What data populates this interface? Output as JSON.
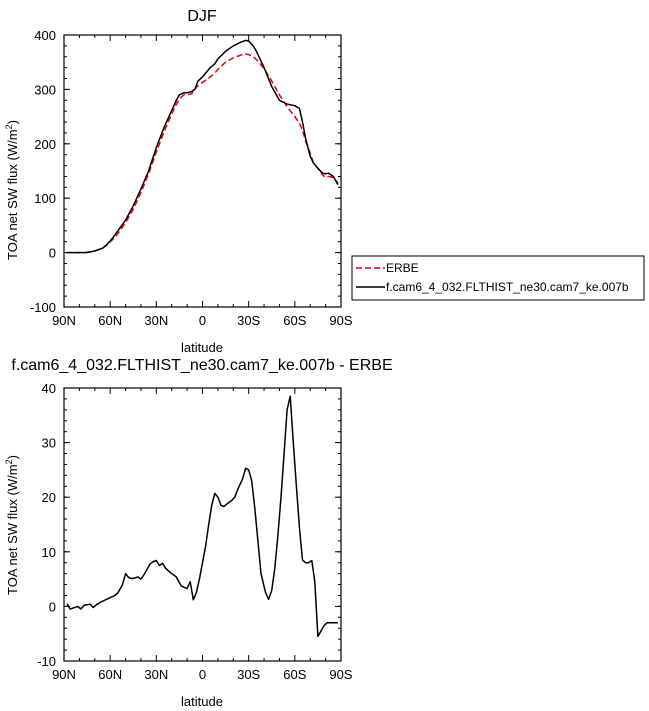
{
  "chart_data": [
    {
      "type": "line",
      "title": "DJF",
      "xlabel": "latitude",
      "ylabel": "TOA net SW flux (W/m",
      "ylabel_sup": "2",
      "ylabel_close": ")",
      "xlim": [
        90,
        -90
      ],
      "ylim": [
        -100,
        400
      ],
      "x_tick_values": [
        90,
        60,
        30,
        0,
        -30,
        -60,
        -90
      ],
      "x_tick_labels": [
        "90N",
        "60N",
        "30N",
        "0",
        "30S",
        "60S",
        "90S"
      ],
      "y_tick_values": [
        400,
        300,
        200,
        100,
        0,
        -100
      ],
      "y_tick_labels": [
        "400",
        "300",
        "200",
        "100",
        "0",
        "-100"
      ],
      "legend_position": "right",
      "series": [
        {
          "name": "ERBE",
          "color": "#e8000b",
          "dash": "dashed",
          "x": [
            88,
            85,
            80,
            75,
            70,
            65,
            62,
            58,
            55,
            50,
            45,
            40,
            35,
            30,
            25,
            20,
            17,
            15,
            12,
            10,
            7,
            5,
            3,
            0,
            -3,
            -5,
            -8,
            -10,
            -15,
            -20,
            -25,
            -28,
            -30,
            -33,
            -35,
            -40,
            -45,
            -50,
            -55,
            -60,
            -63,
            -65,
            -67,
            -70,
            -72,
            -75,
            -78,
            -80,
            -82,
            -85,
            -88
          ],
          "values": [
            0,
            0,
            0,
            1,
            3,
            8,
            14,
            25,
            35,
            55,
            80,
            110,
            145,
            185,
            222,
            255,
            272,
            283,
            290,
            290,
            292,
            300,
            307,
            313,
            318,
            323,
            330,
            337,
            350,
            358,
            363,
            365,
            364,
            360,
            355,
            338,
            315,
            290,
            268,
            250,
            238,
            225,
            205,
            183,
            165,
            155,
            143,
            138,
            140,
            138,
            128
          ]
        },
        {
          "name": "f.cam6_4_032.FLTHIST_ne30.cam7_ke.007b",
          "color": "#000000",
          "dash": "solid",
          "x": [
            88,
            85,
            80,
            75,
            70,
            65,
            62,
            58,
            55,
            50,
            45,
            40,
            35,
            30,
            25,
            20,
            17,
            15,
            12,
            10,
            7,
            5,
            3,
            0,
            -3,
            -5,
            -8,
            -10,
            -15,
            -20,
            -25,
            -28,
            -30,
            -33,
            -35,
            -40,
            -45,
            -50,
            -55,
            -60,
            -63,
            -65,
            -67,
            -70,
            -72,
            -75,
            -78,
            -80,
            -82,
            -85,
            -88
          ],
          "values": [
            0,
            0,
            0,
            0,
            3,
            8,
            15,
            28,
            40,
            60,
            86,
            117,
            150,
            193,
            230,
            261,
            280,
            290,
            294,
            294,
            296,
            300,
            315,
            323,
            333,
            340,
            347,
            356,
            370,
            380,
            387,
            390,
            389,
            380,
            370,
            340,
            305,
            280,
            273,
            270,
            265,
            240,
            210,
            177,
            165,
            155,
            146,
            145,
            146,
            140,
            125
          ]
        }
      ]
    },
    {
      "type": "line",
      "title": "f.cam6_4_032.FLTHIST_ne30.cam7_ke.007b - ERBE",
      "xlabel": "latitude",
      "ylabel": "TOA net SW flux (W/m",
      "ylabel_sup": "2",
      "ylabel_close": ")",
      "xlim": [
        90,
        -90
      ],
      "ylim": [
        -10,
        40
      ],
      "x_tick_values": [
        90,
        60,
        30,
        0,
        -30,
        -60,
        -90
      ],
      "x_tick_labels": [
        "90N",
        "60N",
        "30N",
        "0",
        "30S",
        "60S",
        "90S"
      ],
      "y_tick_values": [
        40,
        30,
        20,
        10,
        0,
        -10
      ],
      "y_tick_labels": [
        "40",
        "30",
        "20",
        "10",
        "0",
        "-10"
      ],
      "series": [
        {
          "color": "#000000",
          "dash": "solid",
          "x": [
            88,
            86,
            84,
            81,
            79,
            77,
            75,
            73,
            71,
            69,
            66,
            63,
            60,
            57,
            55,
            52,
            50,
            48,
            46,
            44,
            42,
            40,
            38,
            36,
            34,
            32,
            30,
            28,
            26,
            24,
            21,
            19,
            17,
            14,
            12,
            10,
            8,
            6,
            4,
            2,
            0,
            -2,
            -4,
            -6,
            -8,
            -10,
            -12,
            -14,
            -16,
            -19,
            -21,
            -23,
            -26,
            -28,
            -30,
            -32,
            -34,
            -36,
            -38,
            -41,
            -43,
            -45,
            -47,
            -49,
            -51,
            -53,
            -55,
            -57,
            -59,
            -61,
            -63,
            -65,
            -67,
            -69,
            -71,
            -73,
            -75,
            -77,
            -79,
            -81,
            -83,
            -84,
            -86,
            -88
          ],
          "values": [
            0.5,
            -0.5,
            -0.3,
            0,
            -0.5,
            0.2,
            0.3,
            0.4,
            -0.2,
            0.3,
            0.8,
            1.2,
            1.6,
            2.0,
            2.5,
            4.0,
            6.0,
            5.3,
            5.1,
            5.2,
            5.4,
            5.0,
            5.8,
            6.8,
            7.8,
            8.2,
            8.4,
            7.5,
            7.9,
            7.0,
            6.2,
            5.8,
            5.4,
            3.8,
            3.5,
            3.3,
            4.5,
            1.2,
            2.5,
            5.0,
            8.0,
            11.0,
            15.0,
            18.5,
            20.7,
            20.0,
            18.5,
            18.3,
            18.8,
            19.4,
            20.0,
            21.5,
            23.3,
            25.3,
            25.0,
            23.0,
            18.0,
            12.0,
            6.0,
            2.5,
            1.3,
            3.0,
            7.0,
            13.0,
            20.0,
            28.0,
            36.0,
            38.5,
            30.0,
            22.0,
            14.5,
            8.5,
            8.0,
            8.0,
            8.4,
            4.5,
            -5.5,
            -4.5,
            -3.5,
            -3.0,
            -3.0,
            -3.0,
            -3.0,
            -3.0
          ]
        }
      ]
    }
  ]
}
